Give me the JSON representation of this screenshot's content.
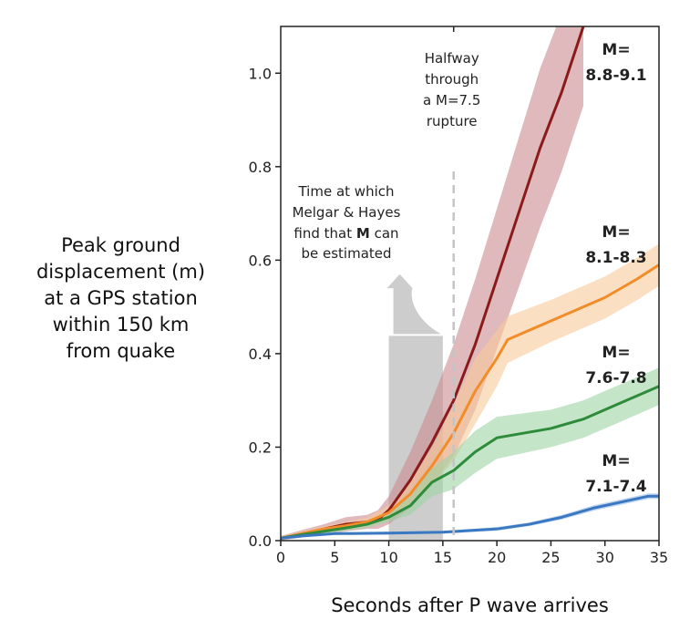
{
  "chart_data": {
    "type": "line",
    "xlabel": "Seconds after P wave arrives",
    "ylabel_lines": [
      "Peak ground",
      "displacement (m)",
      "at a GPS station",
      "within 150 km",
      "from quake"
    ],
    "xlim": [
      0,
      35
    ],
    "ylim": [
      0,
      1.1
    ],
    "xticks": [
      0,
      5,
      10,
      15,
      20,
      25,
      30,
      35
    ],
    "yticks": [
      "0.0",
      "0.2",
      "0.4",
      "0.6",
      "0.8",
      "1.0"
    ],
    "grid": false,
    "series": [
      {
        "label": [
          "M=",
          "8.8-9.1"
        ],
        "color": "#8b1a1a",
        "band_color": "#c98a8f",
        "x": [
          0,
          2,
          4,
          6,
          8,
          9,
          10,
          12,
          14,
          16,
          18,
          20,
          22,
          24,
          26,
          27,
          28
        ],
        "y": [
          0.005,
          0.015,
          0.025,
          0.035,
          0.04,
          0.045,
          0.065,
          0.13,
          0.21,
          0.3,
          0.42,
          0.56,
          0.7,
          0.84,
          0.96,
          1.03,
          1.1
        ],
        "band": [
          0.005,
          0.008,
          0.01,
          0.015,
          0.015,
          0.02,
          0.03,
          0.06,
          0.09,
          0.12,
          0.14,
          0.15,
          0.16,
          0.17,
          0.17,
          0.17,
          0.17
        ]
      },
      {
        "label": [
          "M=",
          "8.1-8.3"
        ],
        "color": "#f28c28",
        "band_color": "#f8c99a",
        "x": [
          0,
          2,
          4,
          6,
          8,
          10,
          12,
          14,
          16,
          18,
          20,
          21,
          25,
          30,
          33,
          35
        ],
        "y": [
          0.005,
          0.015,
          0.025,
          0.032,
          0.04,
          0.06,
          0.1,
          0.16,
          0.23,
          0.32,
          0.39,
          0.43,
          0.47,
          0.52,
          0.56,
          0.59
        ],
        "band": [
          0.004,
          0.005,
          0.006,
          0.008,
          0.01,
          0.015,
          0.025,
          0.04,
          0.06,
          0.07,
          0.06,
          0.05,
          0.045,
          0.045,
          0.045,
          0.045
        ]
      },
      {
        "label": [
          "M=",
          "7.6-7.8"
        ],
        "color": "#2e8b3a",
        "band_color": "#9fd3a3",
        "x": [
          0,
          2,
          4,
          6,
          8,
          10,
          12,
          14,
          16,
          18,
          20,
          25,
          28,
          31,
          35
        ],
        "y": [
          0.005,
          0.013,
          0.02,
          0.027,
          0.035,
          0.05,
          0.075,
          0.125,
          0.15,
          0.19,
          0.22,
          0.24,
          0.26,
          0.29,
          0.33
        ],
        "band": [
          0.003,
          0.004,
          0.005,
          0.006,
          0.008,
          0.01,
          0.02,
          0.03,
          0.04,
          0.045,
          0.045,
          0.04,
          0.04,
          0.04,
          0.04
        ]
      },
      {
        "label": [
          "M=",
          "7.1-7.4"
        ],
        "color": "#3a78c2",
        "band_color": "#9cc0e6",
        "x": [
          0,
          2,
          5,
          10,
          15,
          20,
          23,
          26,
          29,
          32,
          34,
          35
        ],
        "y": [
          0.005,
          0.01,
          0.015,
          0.016,
          0.018,
          0.025,
          0.035,
          0.05,
          0.07,
          0.085,
          0.095,
          0.095
        ],
        "band": [
          0.002,
          0.003,
          0.003,
          0.003,
          0.003,
          0.004,
          0.004,
          0.005,
          0.006,
          0.006,
          0.006,
          0.006
        ]
      }
    ],
    "annotations": {
      "halfway": {
        "x": 16,
        "lines": [
          "Halfway",
          "through",
          "a M=7.5",
          "rupture"
        ]
      },
      "melgar": {
        "x_range": [
          10,
          15
        ],
        "lines_before": [
          "Time at which",
          "Melgar & Hayes",
          "find that "
        ],
        "bold": "M",
        "line3_after": " can",
        "line4": "be estimated"
      }
    }
  }
}
